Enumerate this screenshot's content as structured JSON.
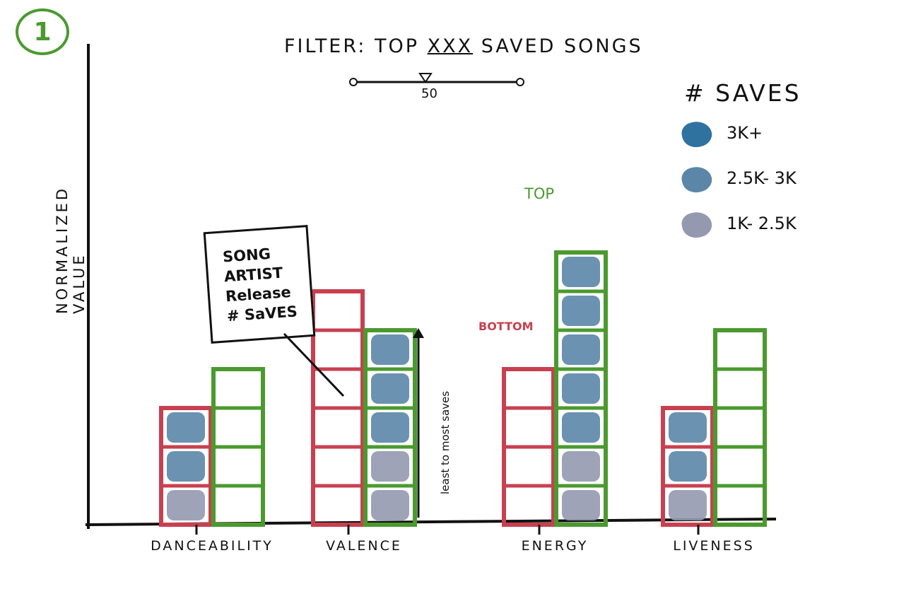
{
  "page_number": "1",
  "filter": {
    "prefix": "FILTER: TOP",
    "placeholder": "XXX",
    "suffix": "SAVED SONGS",
    "slider_value": "50"
  },
  "y_axis_label": "NORMALIZED VALUE",
  "tooltip": {
    "song": "SONG",
    "artist": "ARTIST",
    "release": "Release",
    "saves": "# SaVES"
  },
  "annotations": {
    "top": "TOP",
    "bottom": "BOTTOM",
    "order_note": "least to most saves"
  },
  "legend": {
    "title": "# SAVES",
    "items": [
      {
        "label": "3K+",
        "color": "#2f72a0"
      },
      {
        "label": "2.5K- 3K",
        "color": "#5b86a8"
      },
      {
        "label": "1K- 2.5K",
        "color": "#9499b0"
      }
    ]
  },
  "colors": {
    "bottom_outline": "#c84050",
    "top_outline": "#4a9a2e",
    "axis": "#111111"
  },
  "chart_data": {
    "type": "bar",
    "categories": [
      "DANCEABILITY",
      "VALENCE",
      "ENERGY",
      "LIVENESS"
    ],
    "series": [
      {
        "name": "BOTTOM",
        "values": [
          3,
          6,
          4,
          3
        ]
      },
      {
        "name": "TOP",
        "values": [
          4,
          5,
          7,
          5
        ]
      }
    ]
  }
}
